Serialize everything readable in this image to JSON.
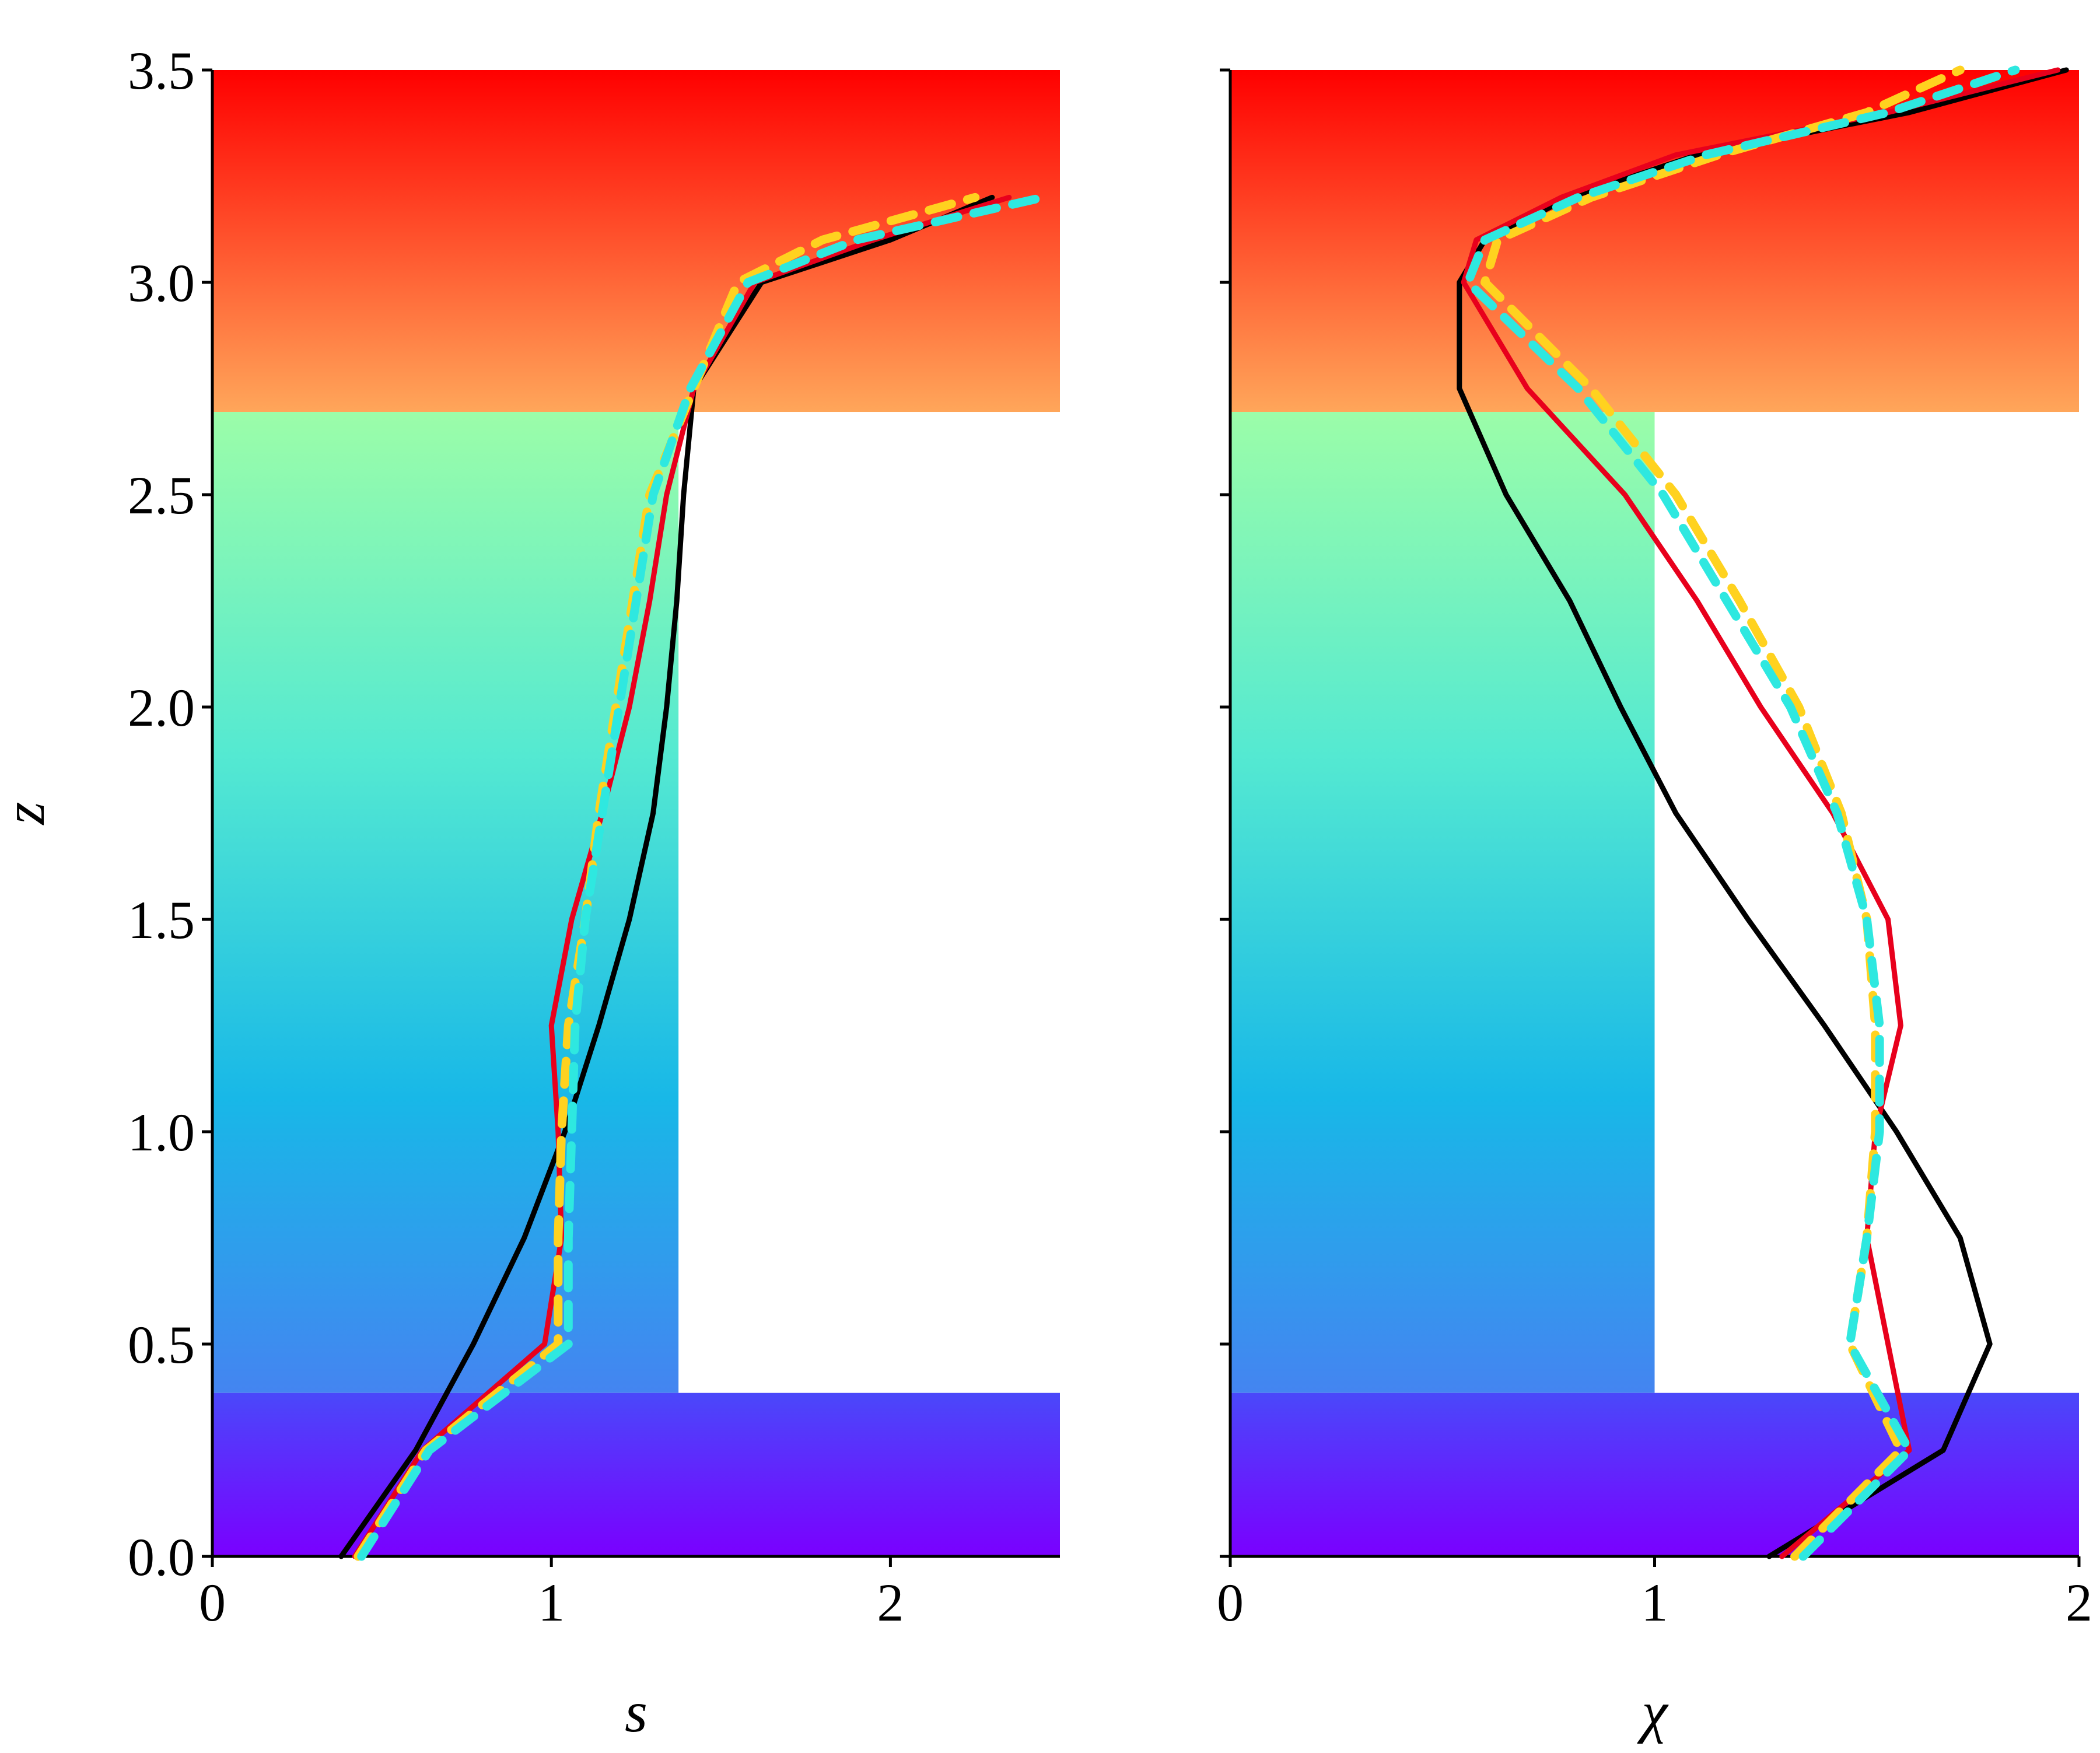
{
  "chart_data": [
    {
      "type": "line",
      "xlabel": "s",
      "ylabel": "z",
      "xlim": [
        0,
        2.5
      ],
      "xticks": [
        0,
        1,
        2
      ],
      "ylim": [
        0,
        3.5
      ],
      "yticks": [
        {
          "value": 0,
          "label": "0.0"
        },
        0.5,
        {
          "value": 1,
          "label": "1.0"
        },
        1.5,
        {
          "value": 2,
          "label": "2.0"
        },
        2.5,
        {
          "value": 3,
          "label": "3.0"
        },
        3.5
      ],
      "y": [
        0,
        0.25,
        0.5,
        0.75,
        1,
        1.25,
        1.5,
        1.75,
        2,
        2.25,
        2.5,
        2.75,
        3,
        3.1,
        3.2,
        3.3,
        3.4,
        3.5
      ],
      "series": [
        {
          "color": "#000000",
          "dash": false,
          "values": [
            0.38,
            0.6,
            0.77,
            0.92,
            1.04,
            1.14,
            1.23,
            1.3,
            1.34,
            1.37,
            1.39,
            1.42,
            1.62,
            2.0,
            2.3,
            null,
            null,
            null
          ]
        },
        {
          "color": "#e8001c",
          "dash": false,
          "values": [
            0.42,
            0.62,
            0.98,
            1.03,
            1.02,
            1.0,
            1.06,
            1.15,
            1.23,
            1.29,
            1.34,
            1.42,
            1.6,
            1.95,
            2.35,
            null,
            null,
            null
          ]
        },
        {
          "color": "#ffd21f",
          "dash": true,
          "values": [
            0.43,
            0.63,
            1.02,
            1.02,
            1.03,
            1.05,
            1.1,
            1.14,
            1.19,
            1.24,
            1.29,
            1.42,
            1.55,
            1.8,
            2.25,
            null,
            null,
            null
          ]
        },
        {
          "color": "#2ee8e0",
          "dash": true,
          "values": [
            0.44,
            0.64,
            1.05,
            1.05,
            1.06,
            1.07,
            1.1,
            1.15,
            1.2,
            1.25,
            1.3,
            1.41,
            1.58,
            1.9,
            2.45,
            null,
            null,
            null
          ]
        }
      ]
    },
    {
      "type": "line",
      "xlabel": "χ",
      "xlim": [
        0,
        2
      ],
      "xticks": [
        0,
        1,
        2
      ],
      "ylim": [
        0,
        3.5
      ],
      "yticks": [
        0,
        0.5,
        1,
        1.5,
        2,
        2.5,
        3,
        3.5
      ],
      "y": [
        0,
        0.25,
        0.5,
        0.75,
        1,
        1.25,
        1.5,
        1.75,
        2,
        2.25,
        2.5,
        2.75,
        3,
        3.1,
        3.2,
        3.3,
        3.4,
        3.5
      ],
      "series": [
        {
          "color": "#000000",
          "dash": false,
          "values": [
            1.27,
            1.68,
            1.79,
            1.72,
            1.57,
            1.4,
            1.22,
            1.05,
            0.92,
            0.8,
            0.65,
            0.54,
            0.54,
            0.6,
            0.8,
            1.1,
            1.6,
            1.97
          ]
        },
        {
          "color": "#e8001c",
          "dash": false,
          "values": [
            1.3,
            1.6,
            1.55,
            1.5,
            1.52,
            1.58,
            1.55,
            1.42,
            1.25,
            1.1,
            0.93,
            0.7,
            0.55,
            0.58,
            0.78,
            1.05,
            1.55,
            1.95
          ]
        },
        {
          "color": "#ffd21f",
          "dash": true,
          "values": [
            1.33,
            1.58,
            1.46,
            1.5,
            1.52,
            1.52,
            1.5,
            1.44,
            1.34,
            1.2,
            1.05,
            0.85,
            0.6,
            0.63,
            0.85,
            1.15,
            1.5,
            1.72
          ]
        },
        {
          "color": "#2ee8e0",
          "dash": true,
          "values": [
            1.35,
            1.6,
            1.46,
            1.5,
            1.53,
            1.53,
            1.5,
            1.43,
            1.32,
            1.17,
            1.02,
            0.82,
            0.56,
            0.6,
            0.82,
            1.12,
            1.55,
            1.85
          ]
        }
      ]
    }
  ]
}
